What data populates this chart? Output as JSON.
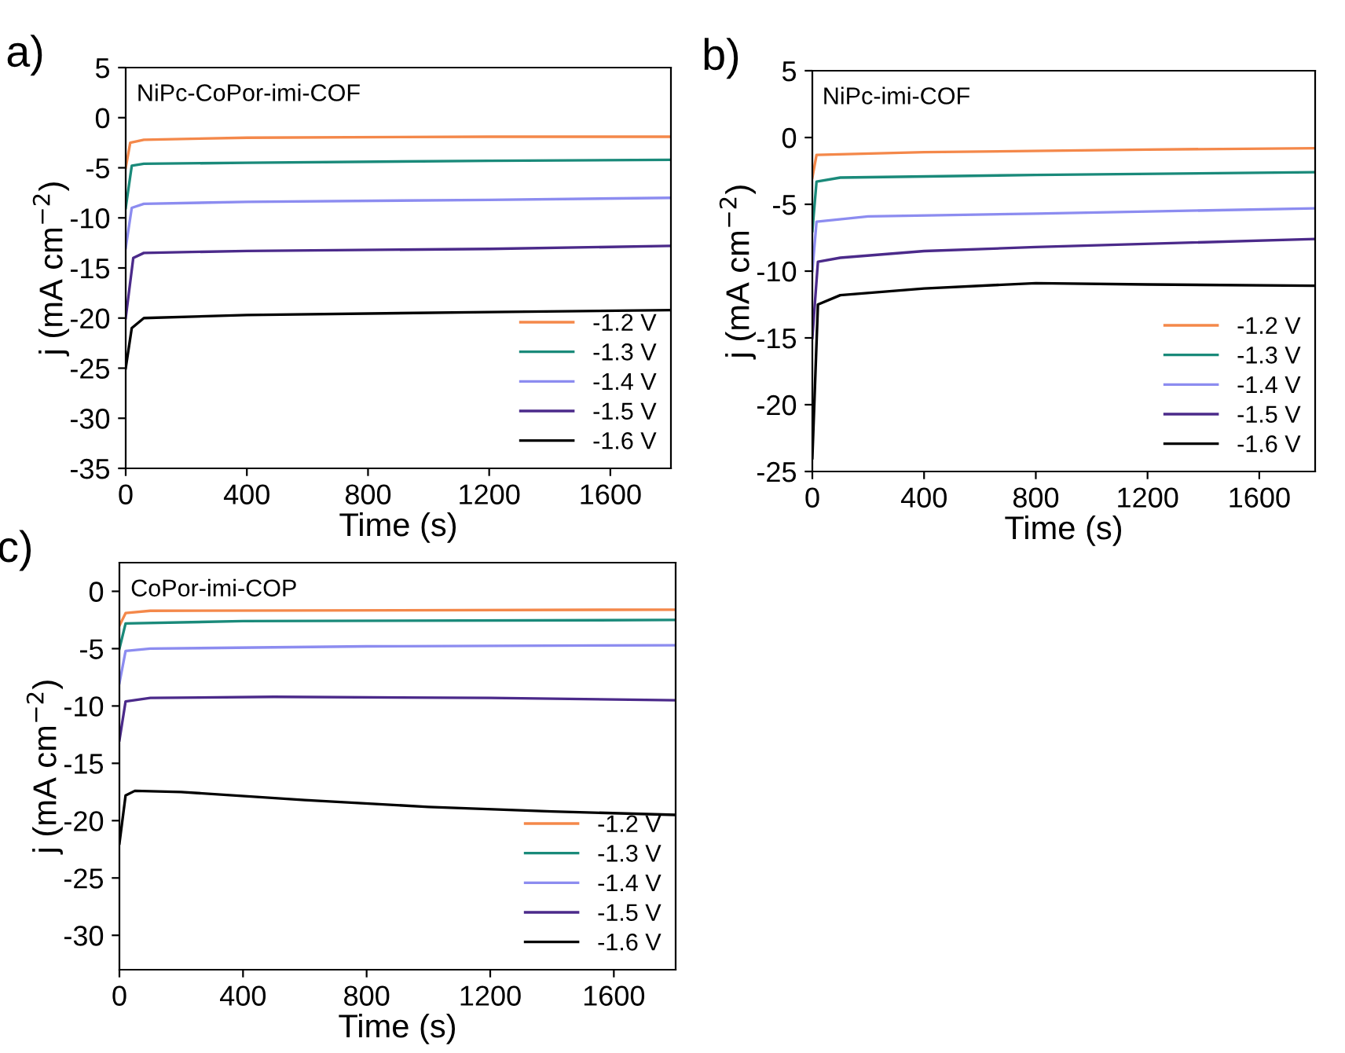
{
  "chart_data": [
    {
      "type": "line",
      "title": "a)",
      "annotations": [
        "NiPc-CoPor-imi-COF"
      ],
      "xlabel": "Time (s)",
      "ylabel": "j (mA cm$^{−2}$)",
      "xlim": [
        0,
        1800
      ],
      "ylim": [
        -35,
        5
      ],
      "xticks": [
        0,
        400,
        800,
        1200,
        1600
      ],
      "yticks": [
        -35,
        -30,
        -25,
        -20,
        -15,
        -10,
        -5,
        0,
        5
      ],
      "grid": false,
      "legend": "bottom right",
      "series": [
        {
          "name": "-1.2 V",
          "color": "#f4884a",
          "x": [
            0,
            15,
            60,
            400,
            1200,
            1800
          ],
          "values": [
            -5,
            -2.5,
            -2.2,
            -2.0,
            -1.9,
            -1.9
          ]
        },
        {
          "name": "-1.3 V",
          "color": "#1a8a7a",
          "x": [
            0,
            20,
            60,
            400,
            1200,
            1800
          ],
          "values": [
            -9,
            -4.8,
            -4.6,
            -4.5,
            -4.3,
            -4.2
          ]
        },
        {
          "name": "-1.4 V",
          "color": "#8c8cf0",
          "x": [
            0,
            20,
            60,
            400,
            1200,
            1800
          ],
          "values": [
            -13,
            -9,
            -8.6,
            -8.4,
            -8.2,
            -8.0
          ]
        },
        {
          "name": "-1.5 V",
          "color": "#4b2a8a",
          "x": [
            0,
            25,
            60,
            400,
            1200,
            1800
          ],
          "values": [
            -20,
            -14,
            -13.5,
            -13.3,
            -13.1,
            -12.8
          ]
        },
        {
          "name": "-1.6 V",
          "color": "#000000",
          "x": [
            0,
            20,
            60,
            400,
            1200,
            1800
          ],
          "values": [
            -25,
            -21,
            -20,
            -19.7,
            -19.4,
            -19.2
          ]
        }
      ]
    },
    {
      "type": "line",
      "title": "b)",
      "annotations": [
        "NiPc-imi-COF"
      ],
      "xlabel": "Time (s)",
      "ylabel": "j (mA cm$^{−2}$)",
      "xlim": [
        0,
        1800
      ],
      "ylim": [
        -25,
        5
      ],
      "xticks": [
        0,
        400,
        800,
        1200,
        1600
      ],
      "yticks": [
        -25,
        -20,
        -15,
        -10,
        -5,
        0,
        5
      ],
      "grid": false,
      "legend": "bottom right",
      "series": [
        {
          "name": "-1.2 V",
          "color": "#f4884a",
          "x": [
            0,
            15,
            400,
            1200,
            1800
          ],
          "values": [
            -3,
            -1.3,
            -1.1,
            -0.9,
            -0.8
          ]
        },
        {
          "name": "-1.3 V",
          "color": "#1a8a7a",
          "x": [
            0,
            15,
            100,
            800,
            1800
          ],
          "values": [
            -7,
            -3.3,
            -3.0,
            -2.8,
            -2.6
          ]
        },
        {
          "name": "-1.4 V",
          "color": "#8c8cf0",
          "x": [
            0,
            15,
            200,
            800,
            1800
          ],
          "values": [
            -10,
            -6.3,
            -5.9,
            -5.7,
            -5.3
          ]
        },
        {
          "name": "-1.5 V",
          "color": "#4b2a8a",
          "x": [
            0,
            20,
            100,
            400,
            800,
            1800
          ],
          "values": [
            -15,
            -9.3,
            -9.0,
            -8.5,
            -8.2,
            -7.6
          ]
        },
        {
          "name": "-1.6 V",
          "color": "#000000",
          "x": [
            0,
            20,
            100,
            400,
            800,
            1200,
            1800
          ],
          "values": [
            -24,
            -12.5,
            -11.8,
            -11.3,
            -10.9,
            -11.0,
            -11.1
          ]
        }
      ]
    },
    {
      "type": "line",
      "title": "c)",
      "annotations": [
        "CoPor-imi-COP"
      ],
      "xlabel": "Time (s)",
      "ylabel": "j (mA cm$^{−2}$)",
      "xlim": [
        0,
        1800
      ],
      "ylim": [
        -33,
        2.5
      ],
      "xticks": [
        0,
        400,
        800,
        1200,
        1600
      ],
      "yticks": [
        -30,
        -25,
        -20,
        -15,
        -10,
        -5,
        0
      ],
      "grid": false,
      "legend": "bottom right",
      "series": [
        {
          "name": "-1.2 V",
          "color": "#f4884a",
          "x": [
            0,
            20,
            100,
            1800
          ],
          "values": [
            -3,
            -1.9,
            -1.7,
            -1.6
          ]
        },
        {
          "name": "-1.3 V",
          "color": "#1a8a7a",
          "x": [
            0,
            20,
            400,
            1800
          ],
          "values": [
            -5,
            -2.8,
            -2.6,
            -2.5
          ]
        },
        {
          "name": "-1.4 V",
          "color": "#8c8cf0",
          "x": [
            0,
            20,
            100,
            800,
            1800
          ],
          "values": [
            -8,
            -5.2,
            -5.0,
            -4.8,
            -4.7
          ]
        },
        {
          "name": "-1.5 V",
          "color": "#4b2a8a",
          "x": [
            0,
            20,
            100,
            500,
            1200,
            1800
          ],
          "values": [
            -13,
            -9.6,
            -9.3,
            -9.2,
            -9.3,
            -9.5
          ]
        },
        {
          "name": "-1.6 V",
          "color": "#000000",
          "x": [
            0,
            20,
            50,
            200,
            600,
            1000,
            1400,
            1800
          ],
          "values": [
            -22,
            -17.8,
            -17.4,
            -17.5,
            -18.2,
            -18.8,
            -19.2,
            -19.5
          ]
        }
      ]
    }
  ]
}
